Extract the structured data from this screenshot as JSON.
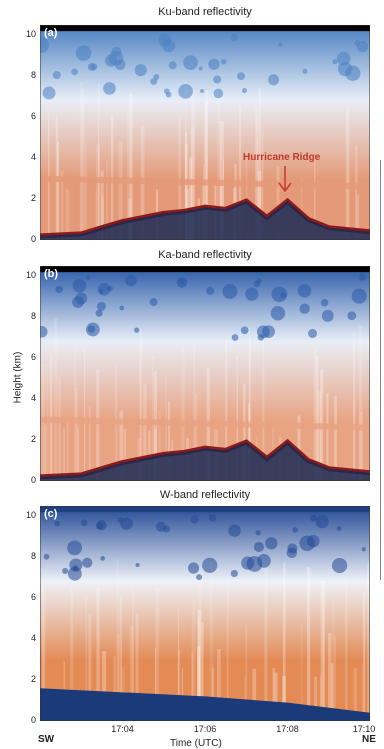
{
  "chart_data": [
    {
      "type": "heatmap",
      "panel_label": "(a)",
      "title": "Ku-band reflectivity",
      "annotation": "Hurricane Ridge",
      "ylim": [
        0,
        10.5
      ],
      "yticks": [
        "0",
        "2",
        "4",
        "6",
        "8",
        "10"
      ],
      "xlim": [
        "17:02",
        "17:10"
      ],
      "colors": {
        "top_band": "#000000",
        "high_cloud": "#4a7fc1",
        "mid_cloud": "#e8eef7",
        "melting_layer": "#e49a78",
        "surface": "#8b1a1a"
      },
      "melting_layer_height_km": 3.0,
      "terrain_x": [
        "17:02",
        "17:03",
        "17:03:30",
        "17:04",
        "17:04:30",
        "17:05",
        "17:05:30",
        "17:06",
        "17:06:30",
        "17:07",
        "17:07:30",
        "17:08",
        "17:08:30",
        "17:09",
        "17:10"
      ],
      "terrain_height_km": [
        0.2,
        0.3,
        0.6,
        0.9,
        1.1,
        1.3,
        1.4,
        1.6,
        1.5,
        1.9,
        1.1,
        1.9,
        1.0,
        0.6,
        0.4
      ]
    },
    {
      "type": "heatmap",
      "panel_label": "(b)",
      "title": "Ka-band reflectivity",
      "ylim": [
        0,
        10.5
      ],
      "yticks": [
        "0",
        "2",
        "4",
        "6",
        "8",
        "10"
      ],
      "xlim": [
        "17:02",
        "17:10"
      ],
      "colors": {
        "top_band": "#000000",
        "high_cloud": "#2a5aa8",
        "mid_cloud": "#e8eef7",
        "melting_layer": "#e8a383",
        "surface": "#8b1a1a"
      },
      "melting_layer_height_km": 3.0
    },
    {
      "type": "heatmap",
      "panel_label": "(c)",
      "title": "W-band reflectivity",
      "ylim": [
        0,
        10.5
      ],
      "yticks": [
        "0",
        "2",
        "4",
        "6",
        "8",
        "10"
      ],
      "xlim": [
        "17:02",
        "17:10"
      ],
      "colors": {
        "top_band": "#1f3f80",
        "high_cloud": "#244a95",
        "mid_cloud": "#eef2f8",
        "melting_layer": "#e38a55",
        "surface": "#1a3a7a"
      }
    }
  ],
  "axes": {
    "ylabel": "Height (km)",
    "xlabel": "Time (UTC)",
    "xticks": [
      "17:04",
      "17:06",
      "17:08",
      "17:10"
    ],
    "left_direction": "SW",
    "right_direction": "NE"
  }
}
